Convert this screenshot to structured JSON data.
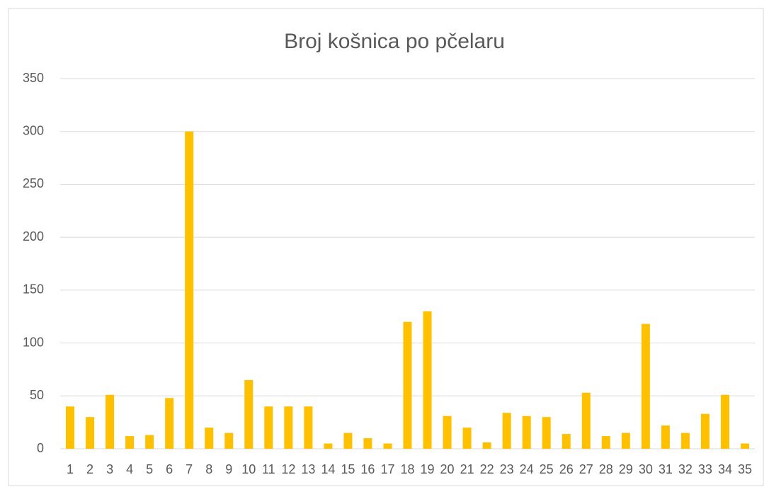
{
  "chart_data": {
    "type": "bar",
    "title": "Broj košnica po pčelaru",
    "categories": [
      "1",
      "2",
      "3",
      "4",
      "5",
      "6",
      "7",
      "8",
      "9",
      "10",
      "11",
      "12",
      "13",
      "14",
      "15",
      "16",
      "17",
      "18",
      "19",
      "20",
      "21",
      "22",
      "23",
      "24",
      "25",
      "26",
      "27",
      "28",
      "29",
      "30",
      "31",
      "32",
      "33",
      "34",
      "35"
    ],
    "values": [
      40,
      30,
      51,
      12,
      13,
      48,
      300,
      20,
      15,
      65,
      40,
      40,
      40,
      5,
      15,
      10,
      5,
      120,
      130,
      31,
      20,
      6,
      34,
      31,
      30,
      14,
      53,
      12,
      15,
      118,
      22,
      15,
      33,
      51,
      5
    ],
    "color": "#ffc000",
    "ylim": [
      0,
      350
    ],
    "yticks": [
      0,
      50,
      100,
      150,
      200,
      250,
      300,
      350
    ],
    "grid": true
  }
}
